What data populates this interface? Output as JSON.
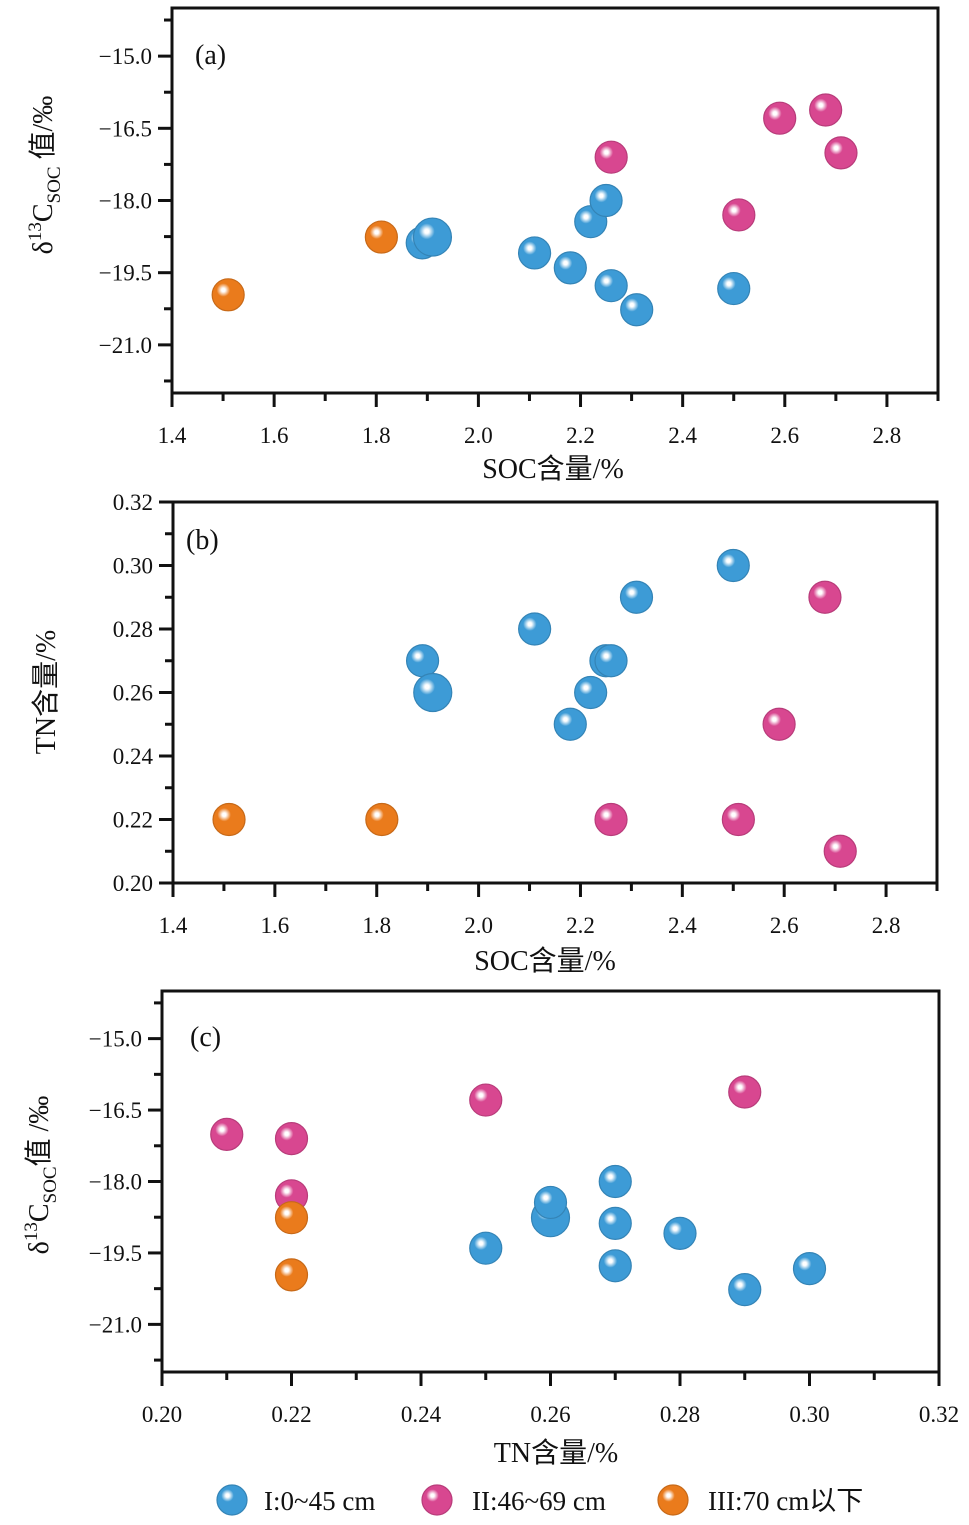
{
  "colors": {
    "I": "#3d9bd6",
    "II": "#d84790",
    "III": "#ea7b1c"
  },
  "legend": [
    {
      "group": "I",
      "label": "I:0~45 cm"
    },
    {
      "group": "II",
      "label": "II:46~69 cm"
    },
    {
      "group": "III",
      "label": "III:70 cm以下"
    }
  ],
  "chart_data": [
    {
      "type": "scatter",
      "panel": "(a)",
      "xlabel": "SOC含量/%",
      "ylabel": "δ13C_SOC 值/‰",
      "ylabel_parts": {
        "delta": "δ",
        "sup": "13",
        "main": "C",
        "sub": "SOC",
        "suffix": " 值/‰"
      },
      "xlim": [
        1.4,
        2.9
      ],
      "ylim": [
        -22.0,
        -14.0
      ],
      "xticks": [
        1.4,
        1.6,
        1.8,
        2.0,
        2.2,
        2.4,
        2.6,
        2.8
      ],
      "xtick_labels": [
        "1.4",
        "1.6",
        "1.8",
        "2.0",
        "2.2",
        "2.4",
        "2.6",
        "2.8"
      ],
      "xminor": [
        1.5,
        1.7,
        1.9,
        2.1,
        2.3,
        2.5,
        2.7,
        2.9
      ],
      "yticks": [
        -15.0,
        -16.5,
        -18.0,
        -19.5,
        -21.0
      ],
      "ytick_labels": [
        "−15.0",
        "−16.5",
        "−18.0",
        "−19.5",
        "−21.0"
      ],
      "yminor": [
        -14.25,
        -15.75,
        -17.25,
        -18.75,
        -20.25,
        -21.75
      ],
      "grid": false,
      "series": [
        {
          "name": "I:0~45 cm",
          "group": "I",
          "points": [
            {
              "x": 1.89,
              "y": -18.88
            },
            {
              "x": 1.91,
              "y": -18.76,
              "size": "large"
            },
            {
              "x": 2.11,
              "y": -19.09
            },
            {
              "x": 2.18,
              "y": -19.4
            },
            {
              "x": 2.22,
              "y": -18.44
            },
            {
              "x": 2.25,
              "y": -18.0
            },
            {
              "x": 2.26,
              "y": -19.77
            },
            {
              "x": 2.31,
              "y": -20.27
            },
            {
              "x": 2.5,
              "y": -19.83
            }
          ]
        },
        {
          "name": "II:46~69 cm",
          "group": "II",
          "points": [
            {
              "x": 2.26,
              "y": -17.1
            },
            {
              "x": 2.51,
              "y": -18.3
            },
            {
              "x": 2.59,
              "y": -16.29
            },
            {
              "x": 2.68,
              "y": -16.12
            },
            {
              "x": 2.71,
              "y": -17.01
            }
          ]
        },
        {
          "name": "III:70 cm以下",
          "group": "III",
          "points": [
            {
              "x": 1.51,
              "y": -19.96
            },
            {
              "x": 1.81,
              "y": -18.76
            }
          ]
        }
      ]
    },
    {
      "type": "scatter",
      "panel": "(b)",
      "xlabel": "SOC含量/%",
      "ylabel": "TN含量/%",
      "xlim": [
        1.4,
        2.9
      ],
      "ylim": [
        0.2,
        0.32
      ],
      "xticks": [
        1.4,
        1.6,
        1.8,
        2.0,
        2.2,
        2.4,
        2.6,
        2.8
      ],
      "xtick_labels": [
        "1.4",
        "1.6",
        "1.8",
        "2.0",
        "2.2",
        "2.4",
        "2.6",
        "2.8"
      ],
      "xminor": [
        1.5,
        1.7,
        1.9,
        2.1,
        2.3,
        2.5,
        2.7,
        2.9
      ],
      "yticks": [
        0.2,
        0.22,
        0.24,
        0.26,
        0.28,
        0.3,
        0.32
      ],
      "ytick_labels": [
        "0.20",
        "0.22",
        "0.24",
        "0.26",
        "0.28",
        "0.30",
        "0.32"
      ],
      "yminor": [
        0.21,
        0.23,
        0.25,
        0.27,
        0.29,
        0.31
      ],
      "grid": false,
      "series": [
        {
          "name": "I:0~45 cm",
          "group": "I",
          "points": [
            {
              "x": 1.89,
              "y": 0.27
            },
            {
              "x": 1.91,
              "y": 0.26,
              "size": "large"
            },
            {
              "x": 2.11,
              "y": 0.28
            },
            {
              "x": 2.18,
              "y": 0.25
            },
            {
              "x": 2.22,
              "y": 0.26
            },
            {
              "x": 2.25,
              "y": 0.27
            },
            {
              "x": 2.26,
              "y": 0.27
            },
            {
              "x": 2.31,
              "y": 0.29
            },
            {
              "x": 2.5,
              "y": 0.3
            }
          ]
        },
        {
          "name": "II:46~69 cm",
          "group": "II",
          "points": [
            {
              "x": 2.26,
              "y": 0.22
            },
            {
              "x": 2.51,
              "y": 0.22
            },
            {
              "x": 2.59,
              "y": 0.25
            },
            {
              "x": 2.68,
              "y": 0.29
            },
            {
              "x": 2.71,
              "y": 0.21
            }
          ]
        },
        {
          "name": "III:70 cm以下",
          "group": "III",
          "points": [
            {
              "x": 1.51,
              "y": 0.22
            },
            {
              "x": 1.81,
              "y": 0.22
            }
          ]
        }
      ]
    },
    {
      "type": "scatter",
      "panel": "(c)",
      "xlabel": "TN含量/%",
      "ylabel": "δ13C_SOC值 /‰",
      "ylabel_parts": {
        "delta": "δ",
        "sup": "13",
        "main": "C",
        "sub": "SOC",
        "suffix": "值 /‰"
      },
      "xlim": [
        0.2,
        0.32
      ],
      "ylim": [
        -22.0,
        -14.0
      ],
      "xticks": [
        0.2,
        0.22,
        0.24,
        0.26,
        0.28,
        0.3,
        0.32
      ],
      "xtick_labels": [
        "0.20",
        "0.22",
        "0.24",
        "0.26",
        "0.28",
        "0.30",
        "0.32"
      ],
      "xminor": [
        0.21,
        0.23,
        0.25,
        0.27,
        0.29,
        0.31
      ],
      "yticks": [
        -15.0,
        -16.5,
        -18.0,
        -19.5,
        -21.0
      ],
      "ytick_labels": [
        "−15.0",
        "−16.5",
        "−18.0",
        "−19.5",
        "−21.0"
      ],
      "yminor": [
        -14.25,
        -15.75,
        -17.25,
        -18.75,
        -20.25,
        -21.75
      ],
      "grid": false,
      "series": [
        {
          "name": "I:0~45 cm",
          "group": "I",
          "points": [
            {
              "x": 0.27,
              "y": -18.88
            },
            {
              "x": 0.26,
              "y": -18.76,
              "size": "large"
            },
            {
              "x": 0.28,
              "y": -19.09
            },
            {
              "x": 0.25,
              "y": -19.4
            },
            {
              "x": 0.26,
              "y": -18.44
            },
            {
              "x": 0.27,
              "y": -18.0
            },
            {
              "x": 0.27,
              "y": -19.77
            },
            {
              "x": 0.29,
              "y": -20.27
            },
            {
              "x": 0.3,
              "y": -19.83
            }
          ]
        },
        {
          "name": "II:46~69 cm",
          "group": "II",
          "points": [
            {
              "x": 0.22,
              "y": -17.1
            },
            {
              "x": 0.22,
              "y": -18.3
            },
            {
              "x": 0.25,
              "y": -16.29
            },
            {
              "x": 0.29,
              "y": -16.12
            },
            {
              "x": 0.21,
              "y": -17.01
            }
          ]
        },
        {
          "name": "III:70 cm以下",
          "group": "III",
          "points": [
            {
              "x": 0.22,
              "y": -19.96
            },
            {
              "x": 0.22,
              "y": -18.76
            }
          ]
        }
      ]
    }
  ]
}
